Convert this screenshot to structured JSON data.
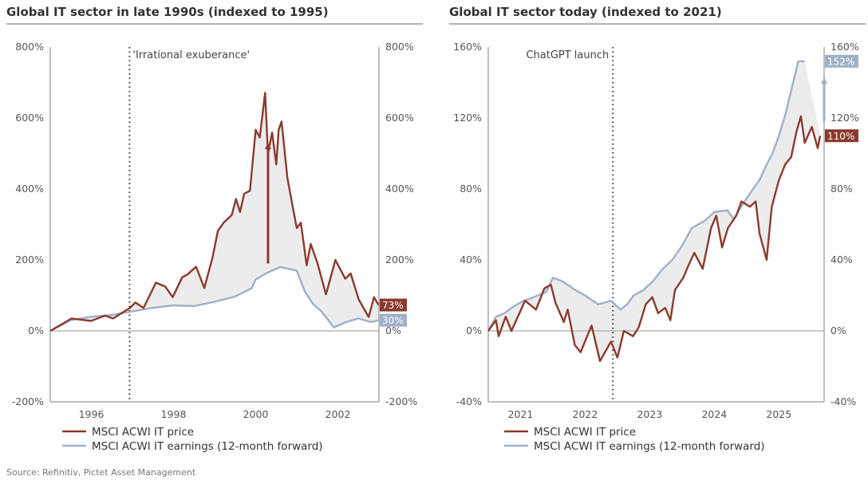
{
  "source": "Source: Refinitiv, Pictet Asset Management",
  "colors": {
    "price": "#8b3a2e",
    "earnings": "#9fb0c8",
    "fill": "#ececec",
    "axis": "#aaaaaa"
  },
  "chart_data": [
    {
      "type": "line",
      "title": "Global IT sector in late 1990s (indexed to 1995)",
      "xlim": [
        1995.0,
        2003.0
      ],
      "ylim": [
        -200,
        800
      ],
      "yticks": [
        -200,
        0,
        200,
        400,
        600,
        800
      ],
      "ytick_labels": [
        "-200%",
        "0%",
        "200%",
        "400%",
        "600%",
        "800%"
      ],
      "xticks": [
        1996,
        1998,
        2000,
        2002
      ],
      "xtick_labels": [
        "1996",
        "1998",
        "2000",
        "2002"
      ],
      "dual_axis": true,
      "grid": false,
      "annotation": {
        "label": "'Irrational exuberance'",
        "x": 1996.93
      },
      "arrow": {
        "x": 2000.3,
        "from": 190,
        "to": 530
      },
      "series": [
        {
          "name": "MSCI ACWI IT price",
          "end_label": "73%",
          "x": [
            1995.0,
            1995.52,
            1995.99,
            1996.33,
            1996.53,
            1996.94,
            1997.07,
            1997.27,
            1997.57,
            1997.8,
            1997.98,
            1998.21,
            1998.34,
            1998.55,
            1998.75,
            1998.95,
            1999.08,
            1999.22,
            1999.42,
            1999.52,
            1999.62,
            1999.72,
            1999.86,
            2000.0,
            2000.1,
            2000.23,
            2000.3,
            2000.4,
            2000.5,
            2000.56,
            2000.63,
            2000.77,
            2000.9,
            2001.0,
            2001.1,
            2001.24,
            2001.34,
            2001.5,
            2001.71,
            2001.94,
            2002.18,
            2002.31,
            2002.51,
            2002.75,
            2002.88,
            2002.99
          ],
          "y": [
            0,
            35,
            28,
            43,
            35,
            65,
            80,
            65,
            136,
            125,
            95,
            151,
            159,
            181,
            121,
            207,
            282,
            305,
            327,
            372,
            335,
            387,
            395,
            567,
            545,
            671,
            499,
            559,
            469,
            567,
            590,
            432,
            350,
            290,
            305,
            185,
            245,
            192,
            103,
            200,
            147,
            162,
            88,
            39,
            95,
            73
          ]
        },
        {
          "name": "MSCI ACWI IT earnings (12-month forward)",
          "end_label": "30%",
          "x": [
            1995.0,
            1995.5,
            1996.0,
            1996.5,
            1997.0,
            1997.5,
            1998.0,
            1998.5,
            1999.0,
            1999.5,
            1999.9,
            2000.0,
            2000.3,
            2000.6,
            2000.8,
            2001.0,
            2001.2,
            2001.4,
            2001.6,
            2001.9,
            2002.2,
            2002.5,
            2002.8,
            2003.0
          ],
          "y": [
            0,
            30,
            40,
            45,
            55,
            65,
            72,
            70,
            82,
            97,
            120,
            145,
            165,
            180,
            175,
            170,
            110,
            75,
            55,
            10,
            25,
            35,
            25,
            30
          ]
        }
      ]
    },
    {
      "type": "line",
      "title": "Global IT sector today (indexed to 2021)",
      "xlim": [
        2020.5,
        2025.7
      ],
      "ylim": [
        -40,
        160
      ],
      "yticks": [
        -40,
        0,
        40,
        80,
        120,
        160
      ],
      "ytick_labels": [
        "-40%",
        "0%",
        "40%",
        "80%",
        "120%",
        "160%"
      ],
      "xticks": [
        2021,
        2022,
        2023,
        2024,
        2025
      ],
      "xtick_labels": [
        "2021",
        "2022",
        "2023",
        "2024",
        "2025"
      ],
      "dual_axis": true,
      "grid": false,
      "annotation": {
        "label": "ChatGPT launch",
        "x": 2022.43
      },
      "arrow": {
        "x": 2025.7,
        "from": 118,
        "to": 143
      },
      "series": [
        {
          "name": "MSCI ACWI IT price",
          "end_label": "110%",
          "x": [
            2020.5,
            2020.62,
            2020.66,
            2020.77,
            2020.86,
            2021.07,
            2021.24,
            2021.37,
            2021.47,
            2021.54,
            2021.67,
            2021.73,
            2021.84,
            2021.93,
            2022.1,
            2022.23,
            2022.4,
            2022.5,
            2022.6,
            2022.74,
            2022.83,
            2022.94,
            2023.04,
            2023.13,
            2023.24,
            2023.32,
            2023.39,
            2023.52,
            2023.6,
            2023.69,
            2023.82,
            2023.95,
            2024.03,
            2024.12,
            2024.21,
            2024.34,
            2024.42,
            2024.55,
            2024.64,
            2024.7,
            2024.81,
            2024.89,
            2025.0,
            2025.1,
            2025.19,
            2025.27,
            2025.34,
            2025.4,
            2025.51,
            2025.6,
            2025.64
          ],
          "y": [
            0,
            6,
            -3,
            8,
            0,
            17,
            12,
            24,
            26,
            16,
            5,
            12,
            -8,
            -12,
            3,
            -17,
            -6,
            -15,
            0,
            -3,
            2,
            15,
            19,
            10,
            13,
            6,
            23,
            30,
            37,
            44,
            35,
            58,
            65,
            47,
            58,
            65,
            73,
            70,
            73,
            55,
            40,
            70,
            85,
            94,
            98,
            112,
            121,
            106,
            115,
            103,
            110
          ]
        },
        {
          "name": "MSCI ACWI IT earnings (12-month forward)",
          "end_label": "152%",
          "x": [
            2020.5,
            2020.62,
            2020.75,
            2020.9,
            2021.05,
            2021.2,
            2021.4,
            2021.5,
            2021.65,
            2021.85,
            2022.0,
            2022.2,
            2022.4,
            2022.55,
            2022.65,
            2022.75,
            2022.9,
            2023.05,
            2023.2,
            2023.35,
            2023.5,
            2023.65,
            2023.85,
            2024.0,
            2024.2,
            2024.3,
            2024.45,
            2024.6,
            2024.7,
            2024.8,
            2024.9,
            2025.0,
            2025.1,
            2025.2,
            2025.3,
            2025.4
          ],
          "y": [
            0,
            8,
            10,
            14,
            17,
            19,
            22,
            30,
            28,
            23,
            20,
            15,
            17,
            12,
            15,
            20,
            23,
            28,
            35,
            40,
            48,
            58,
            62,
            67,
            68,
            63,
            72,
            80,
            85,
            93,
            100,
            110,
            122,
            137,
            152,
            152
          ]
        }
      ]
    }
  ]
}
